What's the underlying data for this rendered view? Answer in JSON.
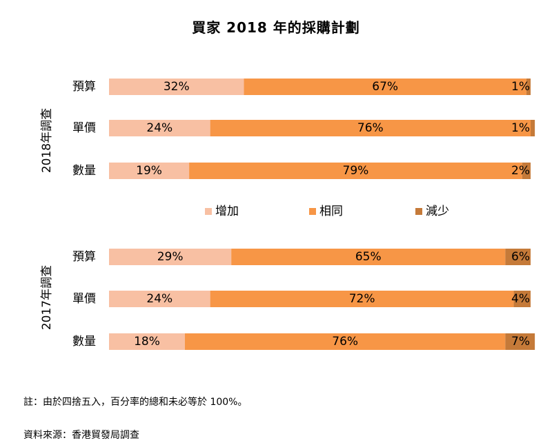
{
  "chart_data": {
    "type": "bar",
    "stacked": true,
    "orientation": "horizontal",
    "percent": true,
    "title": "買家 2018 年的採購計劃",
    "legend": [
      {
        "label": "增加",
        "color": "#f8c0a3"
      },
      {
        "label": "相同",
        "color": "#f79646"
      },
      {
        "label": "減少",
        "color": "#c57a39"
      }
    ],
    "groups": [
      {
        "label": "2018年調查",
        "categories": [
          "預算",
          "單價",
          "數量"
        ],
        "series": [
          {
            "values": [
              32,
              24,
              19
            ]
          },
          {
            "values": [
              67,
              76,
              79
            ]
          },
          {
            "values": [
              1,
              1,
              2
            ]
          }
        ]
      },
      {
        "label": "2017年調查",
        "categories": [
          "預算",
          "單價",
          "數量"
        ],
        "series": [
          {
            "values": [
              29,
              24,
              18
            ]
          },
          {
            "values": [
              65,
              72,
              76
            ]
          },
          {
            "values": [
              6,
              4,
              7
            ]
          }
        ]
      }
    ]
  },
  "footnote": "註：由於四捨五入，百分率的總和未必等於 100%。",
  "source": "資料來源：香港貿發局調查"
}
